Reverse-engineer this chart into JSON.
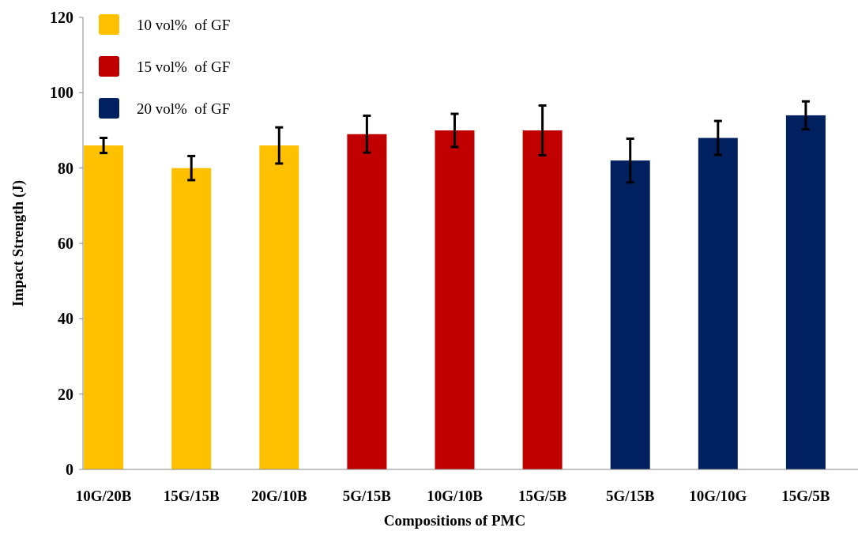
{
  "chart_data": {
    "type": "bar",
    "xlabel": "Compositions of PMC",
    "ylabel": "Impact Strength (J)",
    "categories": [
      "10G/20B",
      "15G/15B",
      "20G/10B",
      "5G/15B",
      "10G/10B",
      "15G/5B",
      "5G/15B",
      "10G/10G",
      "15G/5B"
    ],
    "series": [
      {
        "name": "10 vol%  of GF",
        "color": "#ffc000",
        "values": [
          86,
          80,
          86,
          null,
          null,
          null,
          null,
          null,
          null
        ],
        "errors": [
          2,
          3.2,
          4.8,
          null,
          null,
          null,
          null,
          null,
          null
        ]
      },
      {
        "name": "15 vol%  of GF",
        "color": "#c00000",
        "values": [
          null,
          null,
          null,
          89,
          90,
          90,
          null,
          null,
          null
        ],
        "errors": [
          null,
          null,
          null,
          4.9,
          4.4,
          6.6,
          null,
          null,
          null
        ]
      },
      {
        "name": "20 vol%  of GF",
        "color": "#002060",
        "values": [
          null,
          null,
          null,
          null,
          null,
          null,
          82,
          88,
          94
        ],
        "errors": [
          null,
          null,
          null,
          null,
          null,
          null,
          5.8,
          4.5,
          3.7
        ]
      }
    ],
    "ylim": [
      0,
      120
    ],
    "yticks": [
      0,
      20,
      40,
      60,
      80,
      100,
      120
    ],
    "legend": "top left"
  }
}
